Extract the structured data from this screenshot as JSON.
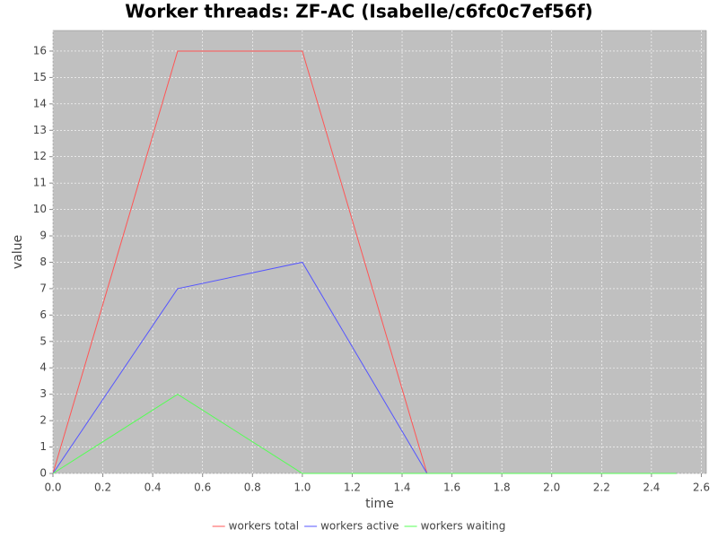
{
  "chart_data": {
    "type": "line",
    "title": "Worker threads: ZF-AC (Isabelle/c6fc0c7ef56f)",
    "x_label": "time",
    "y_label": "value",
    "x": [
      0,
      0.5,
      1.0,
      1.5,
      2.0,
      2.5
    ],
    "series": [
      {
        "name": "workers total",
        "color": "#ff5555",
        "values": [
          0,
          16,
          16,
          0,
          0,
          0
        ]
      },
      {
        "name": "workers active",
        "color": "#5555ff",
        "values": [
          0,
          7,
          8,
          0,
          0,
          0
        ]
      },
      {
        "name": "workers waiting",
        "color": "#55ff55",
        "values": [
          0,
          3,
          0,
          0,
          0,
          0
        ]
      }
    ],
    "xlim": [
      0,
      2.62
    ],
    "xticks": [
      {
        "value": 0,
        "label": "0.0"
      },
      0.2,
      0.4,
      0.6,
      0.8,
      {
        "value": 1,
        "label": "1.0"
      },
      1.2,
      1.4,
      1.6,
      1.8,
      {
        "value": 2,
        "label": "2.0"
      },
      2.2,
      2.4,
      2.6
    ],
    "ylim": [
      0,
      16.78
    ],
    "yticks": [
      0,
      1,
      2,
      3,
      4,
      5,
      6,
      7,
      8,
      9,
      10,
      11,
      12,
      13,
      14,
      15,
      16
    ],
    "grid": true,
    "legend": "bottom",
    "plot_background": "#c0c0c0"
  }
}
